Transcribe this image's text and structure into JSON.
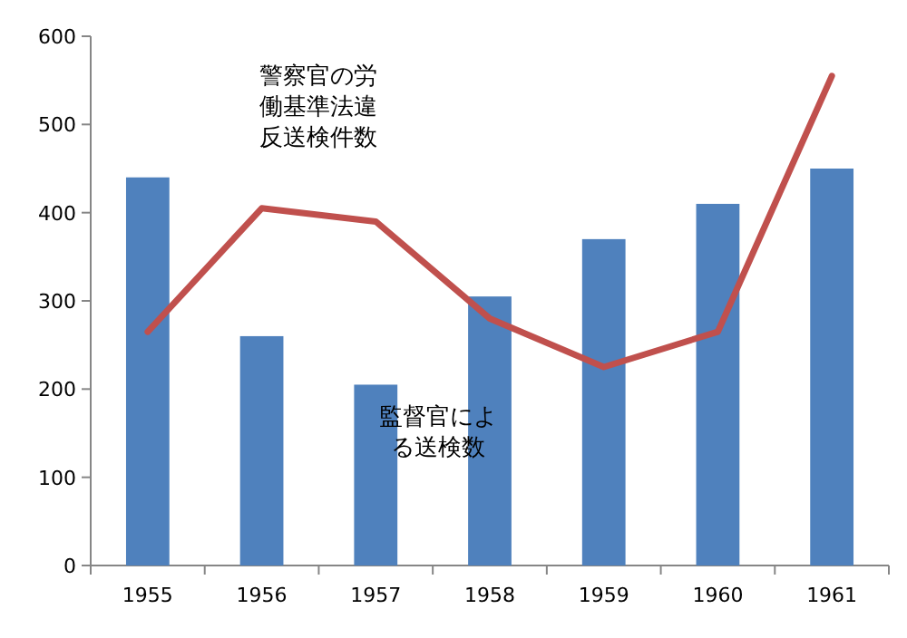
{
  "chart_data": {
    "type": "bar",
    "categories": [
      "1955",
      "1956",
      "1957",
      "1958",
      "1959",
      "1960",
      "1961"
    ],
    "series": [
      {
        "name": "監督官による送検数",
        "color": "#4f81bd",
        "values": [
          440,
          260,
          205,
          305,
          370,
          410,
          450
        ]
      },
      {
        "name": "警察官の労働基準法違反送検件数",
        "type": "line",
        "color": "#c0504d",
        "values": [
          265,
          405,
          390,
          280,
          225,
          265,
          555
        ]
      }
    ],
    "ylim": [
      0,
      600
    ],
    "yticks": [
      0,
      100,
      200,
      300,
      400,
      500,
      600
    ],
    "grid": false,
    "marker": "none"
  }
}
